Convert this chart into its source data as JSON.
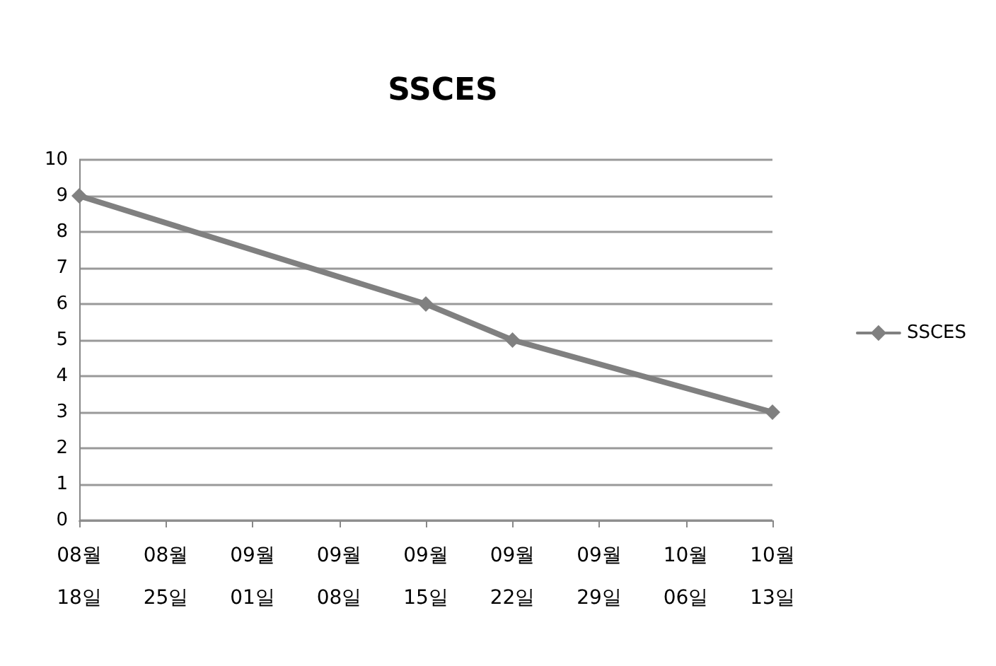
{
  "chart_data": {
    "type": "line",
    "title": "SSCES",
    "x": [
      "--08-18",
      "--09-15",
      "--09-22",
      "--10-13"
    ],
    "series": [
      {
        "name": "SSCES",
        "color": "#808080",
        "values": [
          9,
          6,
          5,
          3
        ]
      }
    ],
    "xlim": [
      "--08-18",
      "--10-13"
    ],
    "xticks": [
      {
        "value": "--08-18",
        "label": "08월 18일"
      },
      {
        "value": "--08-25",
        "label": "08월 25일"
      },
      {
        "value": "--09-01",
        "label": "09월 01일"
      },
      {
        "value": "--09-08",
        "label": "09월 08일"
      },
      {
        "value": "--09-15",
        "label": "09월 15일"
      },
      {
        "value": "--09-22",
        "label": "09월 22일"
      },
      {
        "value": "--09-29",
        "label": "09월 29일"
      },
      {
        "value": "--10-06",
        "label": "10월 06일"
      },
      {
        "value": "--10-13",
        "label": "10월 13일"
      }
    ],
    "ylim": [
      0,
      10
    ],
    "yticks": [
      0,
      1,
      2,
      3,
      4,
      5,
      6,
      7,
      8,
      9,
      10
    ],
    "grid": "y",
    "legend": "right",
    "marker": "diamond",
    "line_style": "solid"
  }
}
